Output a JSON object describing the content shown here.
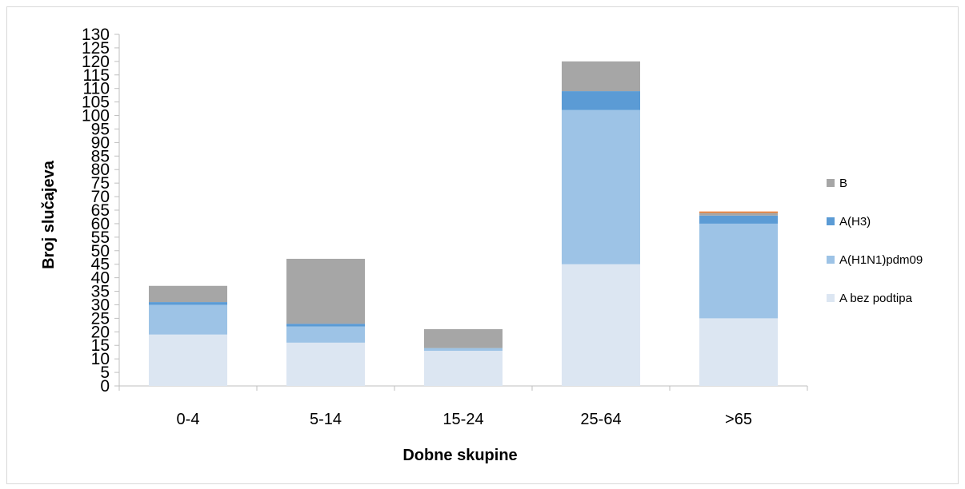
{
  "chart_data": {
    "type": "bar",
    "stacked": true,
    "xlabel": "Dobne skupine",
    "ylabel": "Broj slučajeva",
    "ylim": [
      0,
      130
    ],
    "ytick_step": 5,
    "grid": false,
    "legend_position": "right",
    "categories": [
      "0-4",
      "5-14",
      "15-24",
      "25-64",
      ">65"
    ],
    "series": [
      {
        "name": "A bez podtipa",
        "color": "#dce6f2",
        "values": [
          19,
          16,
          13,
          45,
          25
        ]
      },
      {
        "name": "A(H1N1)pdm09",
        "color": "#9dc3e6",
        "values": [
          11,
          6,
          1,
          57,
          35
        ]
      },
      {
        "name": "A(H3)",
        "color": "#5b9bd5",
        "values": [
          1,
          1,
          0,
          7,
          3
        ]
      },
      {
        "name": "B",
        "color": "#a6a6a6",
        "values": [
          6,
          24,
          7,
          11,
          1
        ]
      }
    ],
    "extra_top_segment_color": "#ed7d31",
    "extra_top_segment_values": [
      0,
      0,
      0,
      0,
      0.5
    ]
  }
}
